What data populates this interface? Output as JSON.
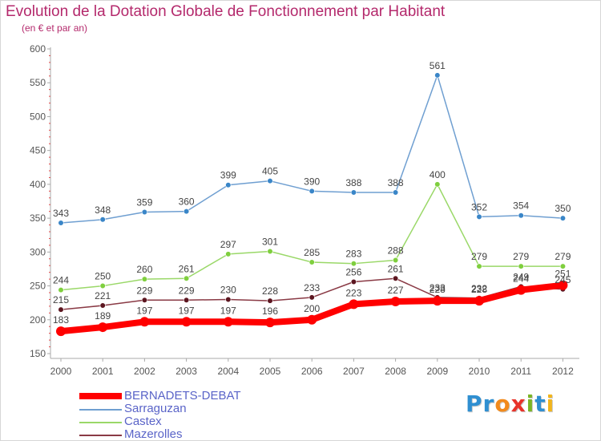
{
  "title": "Evolution de la Dotation Globale de Fonctionnement par Habitant",
  "subtitle": "(en € et par an)",
  "logo_text": "Proxiti",
  "chart_data": {
    "type": "line",
    "title": "Evolution de la Dotation Globale de Fonctionnement par Habitant",
    "subtitle": "(en € et par an)",
    "x": [
      "2000",
      "2001",
      "2002",
      "2003",
      "2004",
      "2005",
      "2006",
      "2007",
      "2008",
      "2009",
      "2010",
      "2011",
      "2012"
    ],
    "ylim": [
      150,
      600
    ],
    "yticks": [
      150,
      200,
      250,
      300,
      350,
      400,
      450,
      500,
      550,
      600
    ],
    "grid": false,
    "legend_position": "bottom-left",
    "series": [
      {
        "name": "Sarraguzan",
        "color": "#6f9fd1",
        "marker": "#3a86c8",
        "values": [
          343,
          348,
          359,
          360,
          399,
          405,
          390,
          388,
          388,
          561,
          352,
          354,
          350
        ]
      },
      {
        "name": "Castex",
        "color": "#9ad868",
        "marker": "#7fcf3e",
        "values": [
          244,
          250,
          260,
          261,
          297,
          301,
          285,
          283,
          288,
          400,
          279,
          279,
          279
        ]
      },
      {
        "name": "Mazerolles",
        "color": "#8a3a45",
        "marker": "#5c1620",
        "values": [
          215,
          221,
          229,
          229,
          230,
          228,
          233,
          256,
          261,
          233,
          232,
          249,
          245
        ]
      },
      {
        "name": "BERNADETS-DEBAT",
        "color": "#ff0000",
        "marker": "#ff0000",
        "values": [
          183,
          189,
          197,
          197,
          197,
          196,
          200,
          223,
          227,
          228,
          228,
          244,
          251
        ]
      }
    ]
  }
}
